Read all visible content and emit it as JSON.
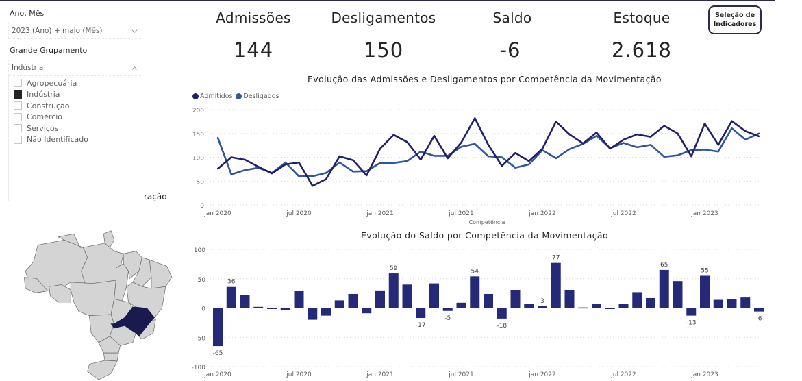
{
  "filters": {
    "period": {
      "title": "Ano, Mês",
      "selected": "2023 (Ano) + maio (Mês)"
    },
    "group": {
      "title": "Grande Grupamento",
      "selected": "Indústria",
      "options": [
        {
          "label": "Agropecuária",
          "checked": false
        },
        {
          "label": "Indústria",
          "checked": true
        },
        {
          "label": "Construção",
          "checked": false
        },
        {
          "label": "Comércio",
          "checked": false
        },
        {
          "label": "Serviços",
          "checked": false
        },
        {
          "label": "Não Identificado",
          "checked": false
        }
      ]
    }
  },
  "map": {
    "title_fragment": "ração",
    "highlighted_state": "Minas Gerais",
    "highlight_color": "#1a1a4e",
    "base_color": "#d4d4d4"
  },
  "kpis": [
    {
      "label": "Admissões",
      "value": "144"
    },
    {
      "label": "Desligamentos",
      "value": "150"
    },
    {
      "label": "Saldo",
      "value": "-6"
    },
    {
      "label": "Estoque",
      "value": "2.618"
    }
  ],
  "selection_button": {
    "line1": "Seleção de",
    "line2": "Indicadores"
  },
  "colors": {
    "admitidos": "#1f1f6b",
    "desligados": "#2f569e",
    "bars": "#252a78"
  },
  "chart_data": [
    {
      "type": "line",
      "title": "Evolução das Admissões e Desligamentos por Competência da Movimentação",
      "xlabel": "Competência",
      "ylabel": "",
      "ylim": [
        0,
        200
      ],
      "yticks": [
        0,
        50,
        100,
        150,
        200
      ],
      "xtick_labels": [
        "jan 2020",
        "jul 2020",
        "jan 2021",
        "jul 2021",
        "jan 2022",
        "jul 2022",
        "jan 2023"
      ],
      "grid": true,
      "legend": "top-left",
      "x": [
        "2020-01",
        "2020-02",
        "2020-03",
        "2020-04",
        "2020-05",
        "2020-06",
        "2020-07",
        "2020-08",
        "2020-09",
        "2020-10",
        "2020-11",
        "2020-12",
        "2021-01",
        "2021-02",
        "2021-03",
        "2021-04",
        "2021-05",
        "2021-06",
        "2021-07",
        "2021-08",
        "2021-09",
        "2021-10",
        "2021-11",
        "2021-12",
        "2022-01",
        "2022-02",
        "2022-03",
        "2022-04",
        "2022-05",
        "2022-06",
        "2022-07",
        "2022-08",
        "2022-09",
        "2022-10",
        "2022-11",
        "2022-12",
        "2023-01",
        "2023-02",
        "2023-03",
        "2023-04",
        "2023-05"
      ],
      "series": [
        {
          "name": "Admitidos",
          "values": [
            76,
            100,
            95,
            80,
            66,
            85,
            89,
            40,
            54,
            102,
            94,
            62,
            118,
            147,
            132,
            95,
            145,
            98,
            131,
            182,
            126,
            82,
            109,
            92,
            118,
            175,
            148,
            129,
            152,
            118,
            137,
            148,
            143,
            166,
            150,
            102,
            171,
            126,
            176,
            155,
            144
          ]
        },
        {
          "name": "Desligados",
          "values": [
            141,
            64,
            73,
            78,
            67,
            89,
            60,
            60,
            67,
            89,
            70,
            71,
            88,
            88,
            92,
            112,
            103,
            103,
            122,
            128,
            102,
            100,
            78,
            85,
            115,
            98,
            117,
            128,
            145,
            119,
            130,
            121,
            126,
            101,
            104,
            115,
            116,
            112,
            161,
            137,
            150
          ]
        }
      ]
    },
    {
      "type": "bar",
      "title": "Evolução do Saldo por Competência da Movimentação",
      "xlabel": "",
      "ylabel": "",
      "ylim": [
        -100,
        100
      ],
      "yticks": [
        -100,
        -50,
        0,
        50,
        100
      ],
      "xtick_labels": [
        "jan 2020",
        "jul 2020",
        "jan 2021",
        "jul 2021",
        "jan 2022",
        "jul 2022",
        "jan 2023"
      ],
      "grid": true,
      "categories": [
        "2020-01",
        "2020-02",
        "2020-03",
        "2020-04",
        "2020-05",
        "2020-06",
        "2020-07",
        "2020-08",
        "2020-09",
        "2020-10",
        "2020-11",
        "2020-12",
        "2021-01",
        "2021-02",
        "2021-03",
        "2021-04",
        "2021-05",
        "2021-06",
        "2021-07",
        "2021-08",
        "2021-09",
        "2021-10",
        "2021-11",
        "2021-12",
        "2022-01",
        "2022-02",
        "2022-03",
        "2022-04",
        "2022-05",
        "2022-06",
        "2022-07",
        "2022-08",
        "2022-09",
        "2022-10",
        "2022-11",
        "2022-12",
        "2023-01",
        "2023-02",
        "2023-03",
        "2023-04",
        "2023-05"
      ],
      "values": [
        -65,
        36,
        22,
        2,
        -1,
        -4,
        29,
        -20,
        -13,
        13,
        24,
        -9,
        30,
        59,
        40,
        -17,
        42,
        -5,
        9,
        54,
        24,
        -18,
        31,
        7,
        3,
        77,
        31,
        1,
        7,
        -1,
        7,
        27,
        17,
        65,
        46,
        -13,
        55,
        14,
        15,
        18,
        -6
      ],
      "labeled_indices": [
        0,
        1,
        13,
        15,
        17,
        19,
        21,
        24,
        25,
        33,
        35,
        36,
        40
      ]
    }
  ]
}
